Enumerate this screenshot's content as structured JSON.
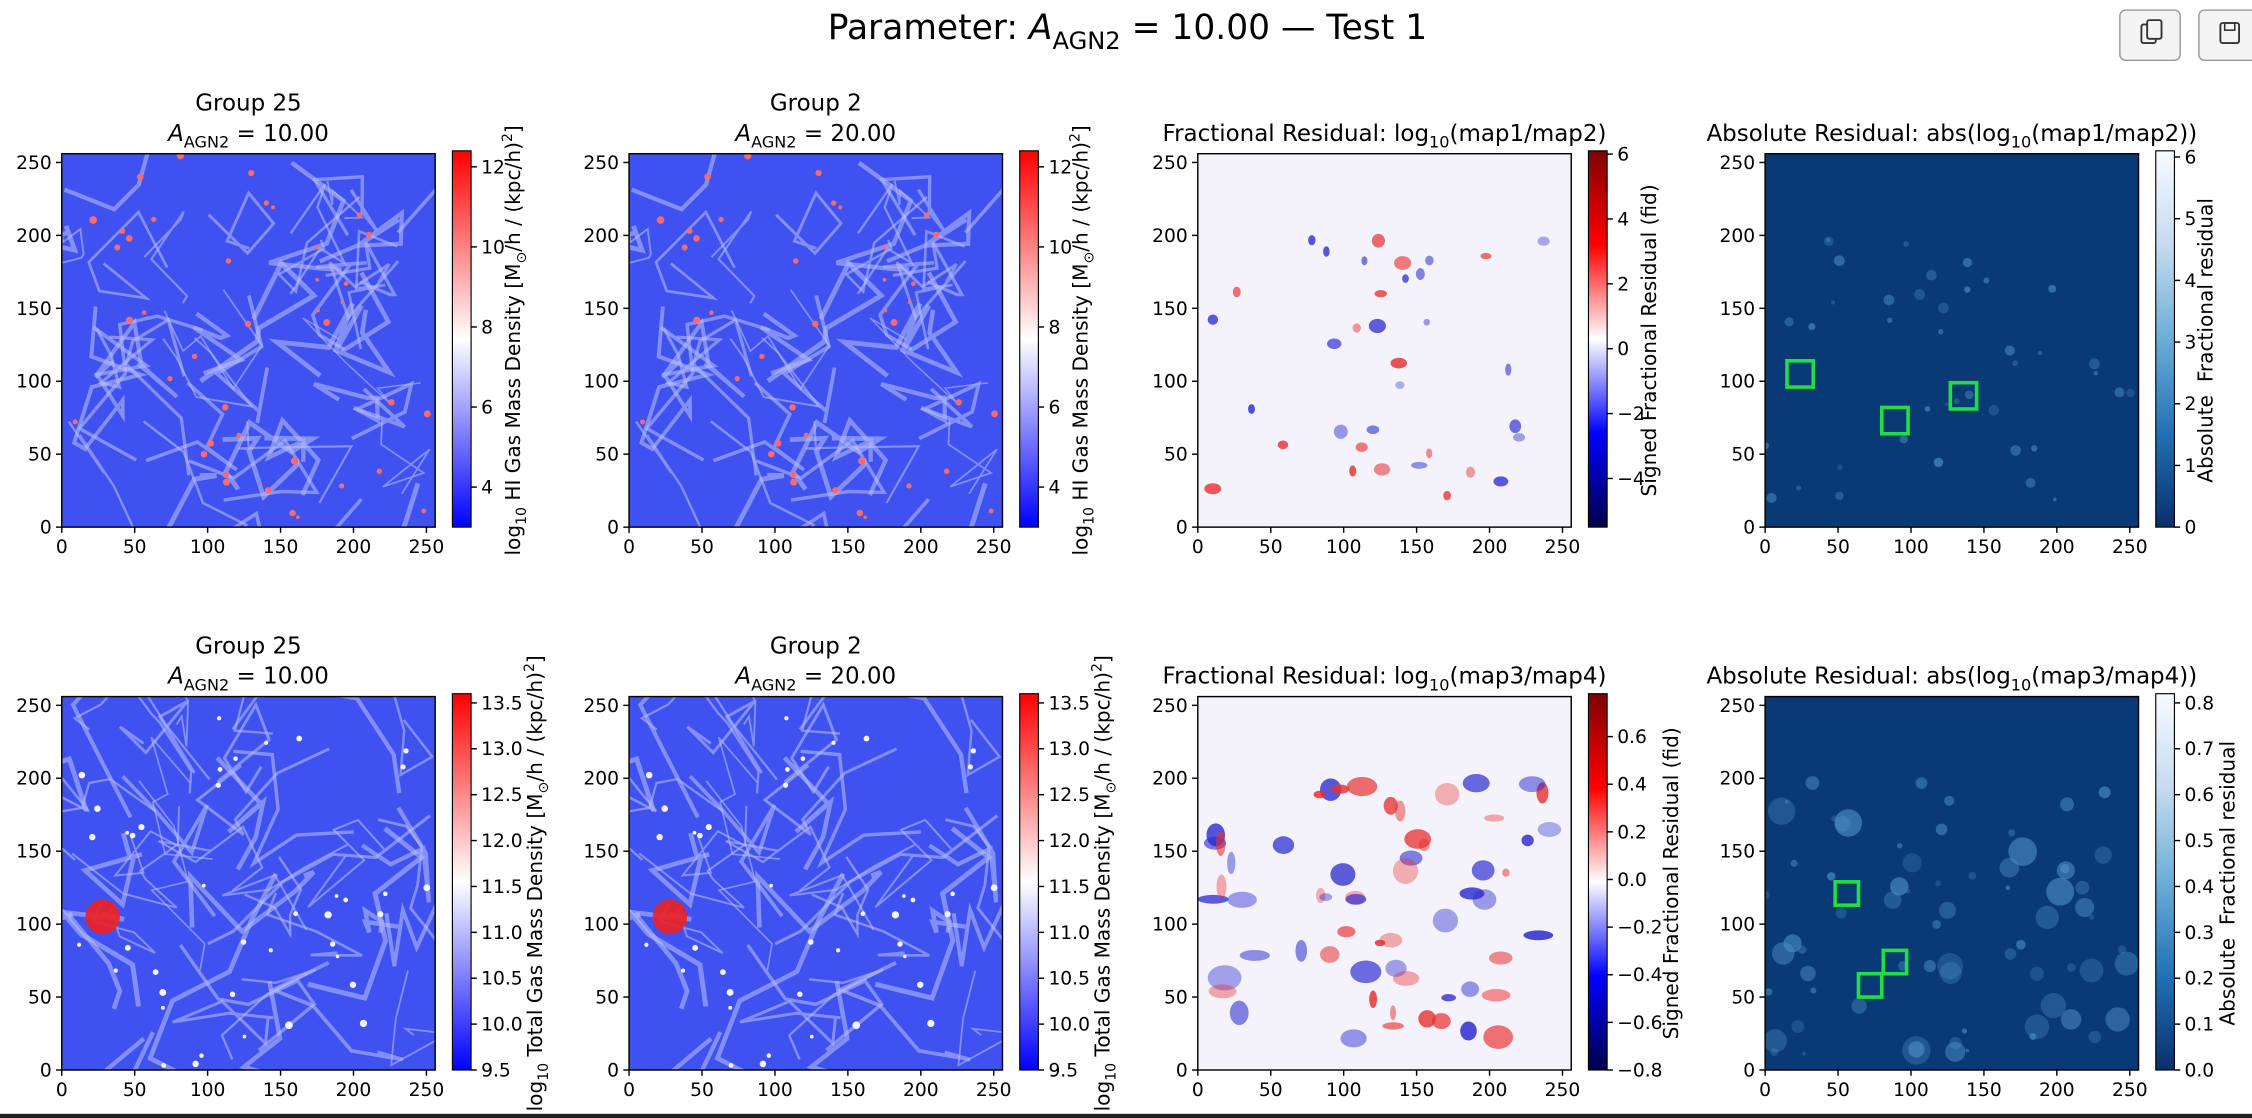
{
  "title": [
    {
      "text": "Parameter: "
    },
    {
      "text": "A",
      "style": "italic"
    },
    {
      "text": "AGN2",
      "style": "sub"
    },
    {
      "text": " = 10.00 — Test 1"
    }
  ],
  "chart_data": [
    {
      "type": "heatmap",
      "title": [
        [
          {
            "text": "Group 25"
          }
        ],
        [
          {
            "text": "A",
            "style": "italic"
          },
          {
            "text": "AGN2",
            "style": "sub"
          },
          {
            "text": " = 10.00"
          }
        ]
      ],
      "xlim": [
        0,
        256
      ],
      "ylim": [
        0,
        256
      ],
      "xticks": [
        0,
        50,
        100,
        150,
        200,
        250
      ],
      "yticks": [
        0,
        50,
        100,
        150,
        200,
        250
      ],
      "colorbar": {
        "cmap": "bwr",
        "lim": [
          3.0,
          12.4
        ],
        "ticks": [
          4,
          6,
          8,
          10,
          12
        ],
        "label": [
          {
            "text": "log"
          },
          {
            "text": "10",
            "style": "sub"
          },
          {
            "text": " HI Gas Mass Density [M"
          },
          {
            "text": "⊙",
            "style": "sub"
          },
          {
            "text": "/h / (kpc/h)"
          },
          {
            "text": "2",
            "style": "sup"
          },
          {
            "text": "]"
          }
        ]
      }
    },
    {
      "type": "heatmap",
      "title": [
        [
          {
            "text": "Group 2"
          }
        ],
        [
          {
            "text": "A",
            "style": "italic"
          },
          {
            "text": "AGN2",
            "style": "sub"
          },
          {
            "text": " = 20.00"
          }
        ]
      ],
      "xlim": [
        0,
        256
      ],
      "ylim": [
        0,
        256
      ],
      "xticks": [
        0,
        50,
        100,
        150,
        200,
        250
      ],
      "yticks": [
        0,
        50,
        100,
        150,
        200,
        250
      ],
      "colorbar": {
        "cmap": "bwr",
        "lim": [
          3.0,
          12.4
        ],
        "ticks": [
          4,
          6,
          8,
          10,
          12
        ],
        "label": [
          {
            "text": "log"
          },
          {
            "text": "10",
            "style": "sub"
          },
          {
            "text": " HI Gas Mass Density [M"
          },
          {
            "text": "⊙",
            "style": "sub"
          },
          {
            "text": "/h / (kpc/h)"
          },
          {
            "text": "2",
            "style": "sup"
          },
          {
            "text": "]"
          }
        ]
      }
    },
    {
      "type": "heatmap",
      "title": [
        [
          {
            "text": "Fractional Residual: log"
          },
          {
            "text": "10",
            "style": "sub"
          },
          {
            "text": "(map1/map2)"
          }
        ]
      ],
      "xlim": [
        0,
        256
      ],
      "ylim": [
        0,
        256
      ],
      "xticks": [
        0,
        50,
        100,
        150,
        200,
        250
      ],
      "yticks": [
        0,
        50,
        100,
        150,
        200,
        250
      ],
      "colorbar": {
        "cmap": "seismic",
        "lim": [
          -5.5,
          6.1
        ],
        "ticks": [
          {
            "value": -4,
            "label": "−4"
          },
          {
            "value": -2,
            "label": "−2"
          },
          0,
          2,
          4,
          6
        ],
        "label": [
          {
            "text": "Signed Fractional Residual (fid)"
          }
        ]
      }
    },
    {
      "type": "heatmap",
      "title": [
        [
          {
            "text": "Absolute Residual: abs(log"
          },
          {
            "text": "10",
            "style": "sub"
          },
          {
            "text": "(map1/map2))"
          }
        ]
      ],
      "xlim": [
        0,
        256
      ],
      "ylim": [
        0,
        256
      ],
      "xticks": [
        0,
        50,
        100,
        150,
        200,
        250
      ],
      "yticks": [
        0,
        50,
        100,
        150,
        200,
        250
      ],
      "colorbar": {
        "cmap": "Blues_r",
        "lim": [
          0,
          6.1
        ],
        "ticks": [
          0,
          1,
          2,
          3,
          4,
          5,
          6
        ],
        "label": [
          {
            "text": "Absolute  Fractional residual"
          }
        ]
      },
      "boxes": [
        {
          "x": 24,
          "y": 105,
          "size": 18
        },
        {
          "x": 89,
          "y": 73,
          "size": 18
        },
        {
          "x": 136,
          "y": 90,
          "size": 18
        }
      ]
    },
    {
      "type": "heatmap",
      "title": [
        [
          {
            "text": "Group 25"
          }
        ],
        [
          {
            "text": "A",
            "style": "italic"
          },
          {
            "text": "AGN2",
            "style": "sub"
          },
          {
            "text": " = 10.00"
          }
        ]
      ],
      "xlim": [
        0,
        256
      ],
      "ylim": [
        0,
        256
      ],
      "xticks": [
        0,
        50,
        100,
        150,
        200,
        250
      ],
      "yticks": [
        0,
        50,
        100,
        150,
        200,
        250
      ],
      "colorbar": {
        "cmap": "bwr",
        "lim": [
          9.5,
          13.6
        ],
        "ticks": [
          9.5,
          {
            "value": 10,
            "label": "10.0"
          },
          10.5,
          {
            "value": 11,
            "label": "11.0"
          },
          11.5,
          {
            "value": 12,
            "label": "12.0"
          },
          12.5,
          {
            "value": 13,
            "label": "13.0"
          },
          13.5
        ],
        "label": [
          {
            "text": "log"
          },
          {
            "text": "10",
            "style": "sub"
          },
          {
            "text": " Total Gas Mass Density [M"
          },
          {
            "text": "⊙",
            "style": "sub"
          },
          {
            "text": "/h / (kpc/h)"
          },
          {
            "text": "2",
            "style": "sup"
          },
          {
            "text": "]"
          }
        ]
      }
    },
    {
      "type": "heatmap",
      "title": [
        [
          {
            "text": "Group 2"
          }
        ],
        [
          {
            "text": "A",
            "style": "italic"
          },
          {
            "text": "AGN2",
            "style": "sub"
          },
          {
            "text": " = 20.00"
          }
        ]
      ],
      "xlim": [
        0,
        256
      ],
      "ylim": [
        0,
        256
      ],
      "xticks": [
        0,
        50,
        100,
        150,
        200,
        250
      ],
      "yticks": [
        0,
        50,
        100,
        150,
        200,
        250
      ],
      "colorbar": {
        "cmap": "bwr",
        "lim": [
          9.5,
          13.6
        ],
        "ticks": [
          9.5,
          {
            "value": 10,
            "label": "10.0"
          },
          10.5,
          {
            "value": 11,
            "label": "11.0"
          },
          11.5,
          {
            "value": 12,
            "label": "12.0"
          },
          12.5,
          {
            "value": 13,
            "label": "13.0"
          },
          13.5
        ],
        "label": [
          {
            "text": "log"
          },
          {
            "text": "10",
            "style": "sub"
          },
          {
            "text": " Total Gas Mass Density [M"
          },
          {
            "text": "⊙",
            "style": "sub"
          },
          {
            "text": "/h / (kpc/h)"
          },
          {
            "text": "2",
            "style": "sup"
          },
          {
            "text": "]"
          }
        ]
      }
    },
    {
      "type": "heatmap",
      "title": [
        [
          {
            "text": "Fractional Residual: log"
          },
          {
            "text": "10",
            "style": "sub"
          },
          {
            "text": "(map3/map4)"
          }
        ]
      ],
      "xlim": [
        0,
        256
      ],
      "ylim": [
        0,
        256
      ],
      "xticks": [
        0,
        50,
        100,
        150,
        200,
        250
      ],
      "yticks": [
        0,
        50,
        100,
        150,
        200,
        250
      ],
      "colorbar": {
        "cmap": "seismic",
        "lim": [
          -0.8,
          0.78
        ],
        "ticks": [
          {
            "value": -0.8,
            "label": "−0.8"
          },
          {
            "value": -0.6,
            "label": "−0.6"
          },
          {
            "value": -0.4,
            "label": "−0.4"
          },
          {
            "value": -0.2,
            "label": "−0.2"
          },
          {
            "value": 0,
            "label": "0.0"
          },
          0.2,
          0.4,
          0.6
        ],
        "label": [
          {
            "text": "Signed Fractional Residual (fid)"
          }
        ]
      }
    },
    {
      "type": "heatmap",
      "title": [
        [
          {
            "text": "Absolute Residual: abs(log"
          },
          {
            "text": "10",
            "style": "sub"
          },
          {
            "text": "(map3/map4))"
          }
        ]
      ],
      "xlim": [
        0,
        256
      ],
      "ylim": [
        0,
        256
      ],
      "xticks": [
        0,
        50,
        100,
        150,
        200,
        250
      ],
      "yticks": [
        0,
        50,
        100,
        150,
        200,
        250
      ],
      "colorbar": {
        "cmap": "Blues_r",
        "lim": [
          0,
          0.82
        ],
        "ticks": [
          {
            "value": 0,
            "label": "0.0"
          },
          0.1,
          0.2,
          0.3,
          0.4,
          0.5,
          0.6,
          0.7,
          0.8
        ],
        "label": [
          {
            "text": "Absolute  Fractional residual"
          }
        ]
      },
      "boxes": [
        {
          "x": 56,
          "y": 121,
          "size": 16
        },
        {
          "x": 72,
          "y": 58,
          "size": 16
        },
        {
          "x": 89,
          "y": 74,
          "size": 16
        }
      ]
    }
  ]
}
